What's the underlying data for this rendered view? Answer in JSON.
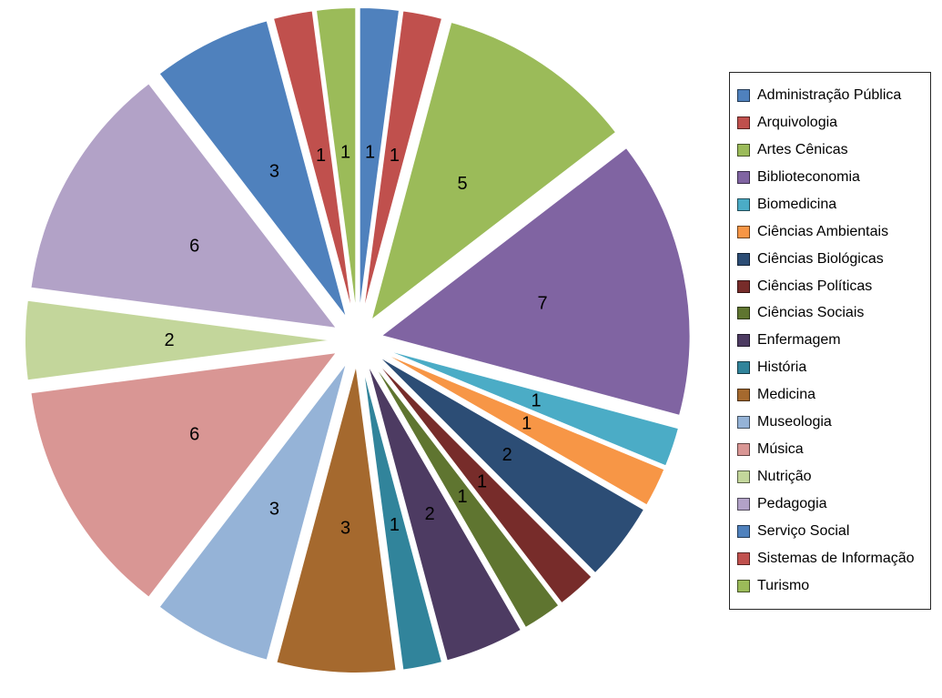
{
  "chart_data": {
    "type": "pie",
    "style": "exploded",
    "title": "",
    "legend_position": "right",
    "label_type": "value",
    "direction": "clockwise",
    "start_angle_deg": 0,
    "total": 48,
    "categories": [
      "Administração Pública",
      "Arquivologia",
      "Artes Cênicas",
      "Biblioteconomia",
      "Biomedicina",
      "Ciências Ambientais",
      "Ciências Biológicas",
      "Ciências Políticas",
      "Ciências Sociais",
      "Enfermagem",
      "História",
      "Medicina",
      "Museologia",
      "Música",
      "Nutrição",
      "Pedagogia",
      "Serviço Social",
      "Sistemas de Informação",
      "Turismo"
    ],
    "values": [
      1,
      1,
      5,
      7,
      1,
      1,
      2,
      1,
      1,
      2,
      1,
      3,
      3,
      6,
      2,
      6,
      3,
      1,
      1
    ],
    "colors": [
      "#4F81BD",
      "#C0504D",
      "#9BBB59",
      "#8064A2",
      "#4BACC6",
      "#F79646",
      "#2C4D75",
      "#772C2A",
      "#5F7530",
      "#4D3B62",
      "#31849B",
      "#A5692E",
      "#95B3D7",
      "#D99694",
      "#C3D69B",
      "#B2A2C7",
      "#4F81BD",
      "#C0504D",
      "#9BBB59"
    ]
  },
  "canvas": {
    "background": "#FFFFFF",
    "label_color": "#000000",
    "legend_border_color": "#262626"
  }
}
